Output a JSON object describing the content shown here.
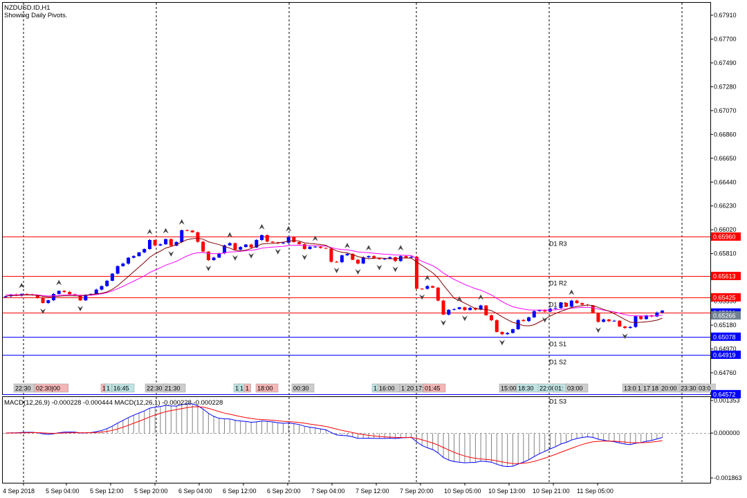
{
  "window": {
    "symbol_line": "NZDUSD.ID,H1",
    "info_line": "Showing Daily Pivots."
  },
  "indicator": {
    "title": "MACD(12,26,9) -0.000228 -0.000444 MACD(12,26,1) -0.000228 -0.000228"
  },
  "colors": {
    "background": "#ffffff",
    "bull": "#0000ff",
    "bear": "#ff0000",
    "ma_fast": "#800000",
    "ma_slow": "#ff00ff",
    "resistance": "#ff0000",
    "support": "#0000ff",
    "macd_line": "#0000ff",
    "signal_line": "#ff0000",
    "hist": "#808080",
    "grid": "#000000"
  },
  "chart_data": [
    {
      "type": "candlestick",
      "title": "NZDUSD.ID,H1",
      "ylim": [
        0.6437,
        0.6802
      ],
      "y_ticks": [
        "0.67910",
        "0.67700",
        "0.67490",
        "0.67280",
        "0.67070",
        "0.66860",
        "0.66650",
        "0.66440",
        "0.66230",
        "0.66020",
        "0.65810",
        "0.65600",
        "0.65390",
        "0.65180",
        "0.64970",
        "0.64760"
      ],
      "x_ticks": [
        "4 Sep 2018",
        "5 Sep 04:00",
        "5 Sep 12:00",
        "5 Sep 20:00",
        "6 Sep 04:00",
        "6 Sep 12:00",
        "6 Sep 20:00",
        "7 Sep 04:00",
        "7 Sep 12:00",
        "7 Sep 20:00",
        "10 Sep 05:00",
        "10 Sep 13:00",
        "10 Sep 21:00",
        "11 Sep 05:00"
      ],
      "period_separators": [
        "5 Sep",
        "6 Sep",
        "7 Sep",
        "8 Sep",
        "10 Sep",
        "11 Sep",
        "12 Sep"
      ],
      "grid": false,
      "pivot_levels": [
        {
          "name": "D1 R3",
          "value": 0.6596
        },
        {
          "name": "D1 R2",
          "value": 0.65613
        },
        {
          "name": "D1 R1",
          "value": 0.65425
        },
        {
          "name": "",
          "value": 0.65291
        },
        {
          "name": "D1 S1",
          "value": 0.65078
        },
        {
          "name": "D1 S2",
          "value": 0.64919
        },
        {
          "name": "D1 S3",
          "value": 0.64572
        }
      ],
      "price_tags": [
        {
          "value": 0.6596,
          "label": "0.65960",
          "color": "#ff0000"
        },
        {
          "value": 0.65613,
          "label": "0.65613",
          "color": "#ff0000"
        },
        {
          "value": 0.65425,
          "label": "0.65425",
          "color": "#ff0000"
        },
        {
          "value": 0.65291,
          "label": "0.65291",
          "color": "#0000ff"
        },
        {
          "value": 0.65266,
          "label": "0.65266",
          "color": "#708090"
        },
        {
          "value": 0.65078,
          "label": "0.65078",
          "color": "#0000ff"
        },
        {
          "value": 0.64919,
          "label": "0.64919",
          "color": "#0000ff"
        },
        {
          "value": 0.64572,
          "label": "0.64572",
          "color": "#0000ff"
        }
      ],
      "closes": [
        0.65434,
        0.65449,
        0.6544,
        0.65455,
        0.65452,
        0.65444,
        0.6542,
        0.65375,
        0.65399,
        0.65455,
        0.65482,
        0.65472,
        0.65452,
        0.65443,
        0.65398,
        0.65447,
        0.65454,
        0.65493,
        0.65524,
        0.65571,
        0.65634,
        0.657,
        0.65722,
        0.65774,
        0.65788,
        0.65821,
        0.6585,
        0.6593,
        0.65882,
        0.65892,
        0.65938,
        0.6588,
        0.65912,
        0.66016,
        0.66013,
        0.65998,
        0.65914,
        0.65828,
        0.65753,
        0.65775,
        0.65813,
        0.65883,
        0.65902,
        0.65845,
        0.65868,
        0.6589,
        0.65864,
        0.6593,
        0.65973,
        0.65916,
        0.65908,
        0.659,
        0.65906,
        0.65956,
        0.65912,
        0.65894,
        0.65851,
        0.6587,
        0.65871,
        0.6586,
        0.65854,
        0.65738,
        0.65735,
        0.65795,
        0.65808,
        0.65756,
        0.65723,
        0.65778,
        0.65788,
        0.65769,
        0.65761,
        0.65766,
        0.65778,
        0.65745,
        0.65788,
        0.65774,
        0.65782,
        0.65501,
        0.655,
        0.65524,
        0.6551,
        0.65396,
        0.65273,
        0.65315,
        0.65321,
        0.65337,
        0.65313,
        0.65332,
        0.65317,
        0.65353,
        0.65267,
        0.65223,
        0.6512,
        0.651,
        0.65111,
        0.65144,
        0.65225,
        0.65216,
        0.65249,
        0.65303,
        0.65314,
        0.653,
        0.65325,
        0.65331,
        0.65376,
        0.65343,
        0.65396,
        0.65374,
        0.6536,
        0.65354,
        0.65286,
        0.65209,
        0.6523,
        0.65215,
        0.65219,
        0.65168,
        0.65155,
        0.65164,
        0.65258,
        0.65233,
        0.65266,
        0.65256,
        0.65291,
        0.65308
      ],
      "candle_range": [
        4,
        124
      ],
      "series": [
        {
          "name": "",
          "color": "#800000",
          "values": []
        },
        {
          "name": "",
          "color": "#ff00ff",
          "values": []
        }
      ],
      "time_markers": [
        {
          "label": "22:30",
          "color": "#cccccc"
        },
        {
          "label": "02:30|00",
          "color": "#f4b6b6"
        },
        {
          "label": "1",
          "color": "#f4b6b6"
        },
        {
          "label": "1",
          "color": "#bfe3e3"
        },
        {
          "label": "16:45",
          "color": "#bfe3e3"
        },
        {
          "label": "22:30",
          "color": "#cccccc"
        },
        {
          "label": "21:30",
          "color": "#cccccc"
        },
        {
          "label": "1",
          "color": "#bfe3e3"
        },
        {
          "label": "1",
          "color": "#bfe3e3"
        },
        {
          "label": "1",
          "color": "#f4b6b6"
        },
        {
          "label": "18:00",
          "color": "#f4b6b6"
        },
        {
          "label": "00:30",
          "color": "#cccccc"
        },
        {
          "label": "1",
          "color": "#bfe3e3"
        },
        {
          "label": "16:00",
          "color": "#cccccc"
        },
        {
          "label": "1",
          "color": "#cccccc"
        },
        {
          "label": "20:",
          "color": "#cccccc"
        },
        {
          "label": "17:",
          "color": "#cccccc"
        },
        {
          "label": "01:45",
          "color": "#f4b6b6"
        },
        {
          "label": "15:00",
          "color": "#cccccc"
        },
        {
          "label": "18:30",
          "color": "#bfe3e3"
        },
        {
          "label": "22:00",
          "color": "#bfe3e3"
        },
        {
          "label": "01:",
          "color": "#bfe3e3"
        },
        {
          "label": "03:00",
          "color": "#cccccc"
        },
        {
          "label": "13:00",
          "color": "#cccccc"
        },
        {
          "label": "1",
          "color": "#cccccc"
        },
        {
          "label": "17",
          "color": "#cccccc"
        },
        {
          "label": "18",
          "color": "#cccccc"
        },
        {
          "label": "20:00",
          "color": "#cccccc"
        },
        {
          "label": "23:30",
          "color": "#cccccc"
        },
        {
          "label": "03:0",
          "color": "#cccccc"
        }
      ]
    },
    {
      "type": "line",
      "title": "MACD(12,26,9) -0.000228 -0.000444 MACD(12,26,1) -0.000228 -0.000228",
      "ylim": [
        -0.001863,
        0.001353
      ],
      "y_ticks": [
        "0.001353",
        "0.000000",
        "-0.001863"
      ],
      "series": [
        {
          "name": "",
          "color": "#0000ff",
          "values": []
        },
        {
          "name": "",
          "color": "#ff0000",
          "values": []
        }
      ],
      "histogram": []
    }
  ]
}
